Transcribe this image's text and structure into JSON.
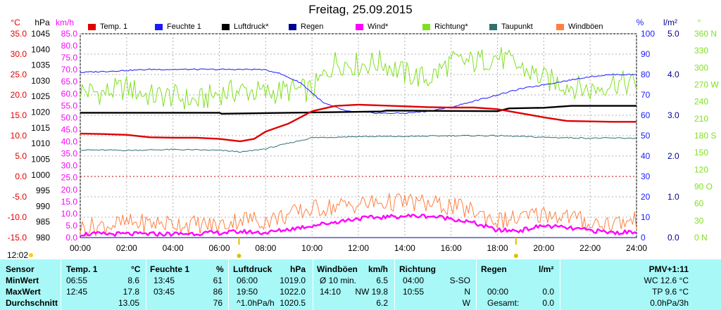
{
  "title": "Freitag, 25.09.2015",
  "legend": [
    {
      "label": "Temp. 1",
      "color": "#e00000"
    },
    {
      "label": "Feuchte 1",
      "color": "#1a1aff"
    },
    {
      "label": "Luftdruck*",
      "color": "#000000"
    },
    {
      "label": "Regen",
      "color": "#000090"
    },
    {
      "label": "Wind*",
      "color": "#ff00ff"
    },
    {
      "label": "Richtung*",
      "color": "#80e020"
    },
    {
      "label": "Taupunkt",
      "color": "#307070"
    },
    {
      "label": "Windböen",
      "color": "#ff8040"
    }
  ],
  "axes": {
    "temp": {
      "unit": "°C",
      "ticks": [
        "35.0",
        "30.0",
        "25.0",
        "20.0",
        "15.0",
        "10.0",
        "5.0",
        "0.0",
        "-5.0",
        "-10.0",
        "-15.0"
      ],
      "color": "#e00000"
    },
    "pressure": {
      "unit": "hPa",
      "ticks": [
        "1045",
        "1040",
        "1035",
        "1030",
        "1025",
        "1020",
        "1015",
        "1010",
        "1005",
        "1000",
        "995",
        "990",
        "985",
        "980"
      ],
      "color": "#000000"
    },
    "wind": {
      "unit": "km/h",
      "ticks": [
        "85.0",
        "80.0",
        "75.0",
        "70.0",
        "65.0",
        "60.0",
        "55.0",
        "50.0",
        "45.0",
        "40.0",
        "35.0",
        "30.0",
        "25.0",
        "20.0",
        "15.0",
        "10.0",
        "5.0",
        "0.0"
      ],
      "color": "#ff00ff"
    },
    "humidity": {
      "unit": "%",
      "ticks": [
        "100",
        "90",
        "80",
        "70",
        "60",
        "50",
        "40",
        "30",
        "20",
        "10",
        "0"
      ],
      "color": "#1a1aff"
    },
    "rain": {
      "unit": "l/m²",
      "ticks": [
        "5.0",
        "4.0",
        "3.0",
        "2.0",
        "1.0",
        "0.0"
      ],
      "color": "#000090"
    },
    "direction": {
      "unit": "°",
      "ticks": [
        "360 N",
        "330",
        "300",
        "270 W",
        "240",
        "210",
        "180 S",
        "150",
        "120",
        "90 O",
        "60",
        "30",
        "0 N"
      ],
      "color": "#80e020"
    },
    "x_ticks": [
      "00:00",
      "02:00",
      "04:00",
      "06:00",
      "08:00",
      "10:00",
      "12:00",
      "14:00",
      "16:00",
      "18:00",
      "20:00",
      "22:00",
      "24:00"
    ]
  },
  "chart_data": {
    "type": "line",
    "x_unit": "hour",
    "series": [
      {
        "name": "Temp. 1",
        "axis": "°C",
        "x": [
          0,
          1,
          2,
          3,
          4,
          5,
          6,
          6.9,
          7.5,
          8,
          9,
          10,
          11,
          12,
          13,
          14,
          15,
          16,
          17,
          18,
          19,
          20,
          21,
          22,
          23,
          24
        ],
        "y": [
          10.5,
          10.4,
          10.2,
          9.6,
          9.5,
          9.5,
          9.2,
          8.6,
          9.2,
          11,
          13,
          16,
          17.3,
          17.6,
          17.4,
          17.2,
          17,
          16.9,
          16.9,
          16.5,
          15.5,
          14.5,
          13.6,
          13.5,
          13.4,
          13.4
        ]
      },
      {
        "name": "Feuchte 1",
        "axis": "%",
        "x": [
          0,
          1,
          2,
          3,
          4,
          5,
          6,
          7,
          7.8,
          8.5,
          9.5,
          10.5,
          11.5,
          12,
          13,
          14,
          15,
          16,
          17,
          18,
          19,
          20,
          21,
          22,
          23,
          24
        ],
        "y": [
          81,
          81.5,
          82,
          82.5,
          82.5,
          82.5,
          82.5,
          82.5,
          82.5,
          81,
          76,
          66,
          62,
          61.5,
          61,
          61,
          62,
          64,
          67,
          70,
          73,
          75,
          77,
          79,
          80,
          80
        ]
      },
      {
        "name": "Luftdruck*",
        "axis": "hPa",
        "x": [
          0,
          6,
          6.1,
          9,
          13,
          13.2,
          18,
          18.5,
          20,
          21.2,
          24
        ],
        "y": [
          1019.8,
          1019.8,
          1019.5,
          1019.8,
          1020.2,
          1020.5,
          1020.3,
          1021.2,
          1021.4,
          1022,
          1022
        ]
      },
      {
        "name": "Regen",
        "axis": "l/m²",
        "x": [
          0,
          24
        ],
        "y": [
          0,
          0
        ]
      },
      {
        "name": "Wind*",
        "axis": "km/h",
        "x": [
          0,
          2,
          4,
          6,
          7,
          8,
          10,
          12,
          14,
          15,
          16,
          17,
          18,
          19,
          20,
          21,
          22,
          23,
          24
        ],
        "y": [
          1.5,
          1.5,
          1.5,
          2,
          2.5,
          2,
          5,
          8,
          9,
          9,
          8,
          6,
          3,
          3,
          5,
          4,
          3,
          2,
          2.5
        ]
      },
      {
        "name": "Richtung*",
        "axis": "°",
        "x": [
          0,
          1,
          2,
          3,
          4,
          5,
          6,
          7,
          8,
          9,
          10,
          11,
          12,
          13,
          14,
          15,
          16,
          17,
          18,
          19,
          20,
          21,
          22,
          23,
          24
        ],
        "y": [
          260,
          255,
          265,
          250,
          250,
          240,
          255,
          260,
          255,
          260,
          260,
          310,
          305,
          310,
          290,
          280,
          310,
          310,
          320,
          300,
          280,
          270,
          260,
          275,
          270
        ]
      },
      {
        "name": "Taupunkt",
        "axis": "°C",
        "x": [
          0,
          2,
          4,
          6,
          7,
          8,
          10,
          12,
          14,
          16,
          18,
          20,
          22,
          24
        ],
        "y": [
          6.5,
          6.4,
          6.6,
          6.4,
          6.0,
          6.8,
          9.5,
          9.8,
          9.8,
          10,
          10,
          9.6,
          9.4,
          9.4
        ]
      },
      {
        "name": "Windböen",
        "axis": "km/h",
        "x": [
          0,
          2,
          4,
          6,
          7,
          8,
          10,
          12,
          14,
          15,
          16,
          17,
          18,
          19,
          20,
          21,
          22,
          23,
          24
        ],
        "y": [
          4,
          6,
          6,
          5,
          8,
          7,
          12,
          14,
          15,
          14,
          13,
          11,
          7,
          8,
          10,
          9,
          6,
          6,
          7
        ]
      }
    ],
    "xlim": [
      0,
      24
    ],
    "grid": true,
    "legend": "top"
  },
  "now_label": "12:02",
  "table": {
    "headers": {
      "sensor": "Sensor",
      "temp": "Temp. 1",
      "temp_unit": "°C",
      "hum": "Feuchte 1",
      "hum_unit": "%",
      "press": "Luftdruck",
      "press_unit": "hPa",
      "wind": "Windböen",
      "wind_unit": "km/h",
      "dir": "Richtung",
      "rain": "Regen",
      "rain_unit": "l/m²",
      "pmv": "PMV+1:11"
    },
    "rows": [
      {
        "label": "MinWert",
        "temp_t": "06:55",
        "temp_v": "8.6",
        "hum_t": "13:45",
        "hum_v": "61",
        "press_t": "06:00",
        "press_v": "1019.0",
        "wind_t": "Ø 10 min.",
        "wind_v": "6.5",
        "dir_t": "04:00",
        "dir_v": "S-SO",
        "rain_t": "",
        "rain_v": "",
        "pmv": "WC 12.6 °C"
      },
      {
        "label": "MaxWert",
        "temp_t": "12:45",
        "temp_v": "17.8",
        "hum_t": "03:45",
        "hum_v": "86",
        "press_t": "19:50",
        "press_v": "1022.0",
        "wind_t": "14:10",
        "wind_v": "NW 19.8",
        "dir_t": "10:55",
        "dir_v": "N",
        "rain_t": "00:00",
        "rain_v": "0.0",
        "pmv": "TP 9.6 °C"
      },
      {
        "label": "Durchschnitt",
        "temp_t": "",
        "temp_v": "13.05",
        "hum_t": "",
        "hum_v": "76",
        "press_t": "^1.0hPa/h",
        "press_v": "1020.5",
        "wind_t": "",
        "wind_v": "6.2",
        "dir_t": "",
        "dir_v": "W",
        "rain_t": "Gesamt:",
        "rain_v": "0.0",
        "pmv": "0.0hPa/3h"
      }
    ]
  }
}
